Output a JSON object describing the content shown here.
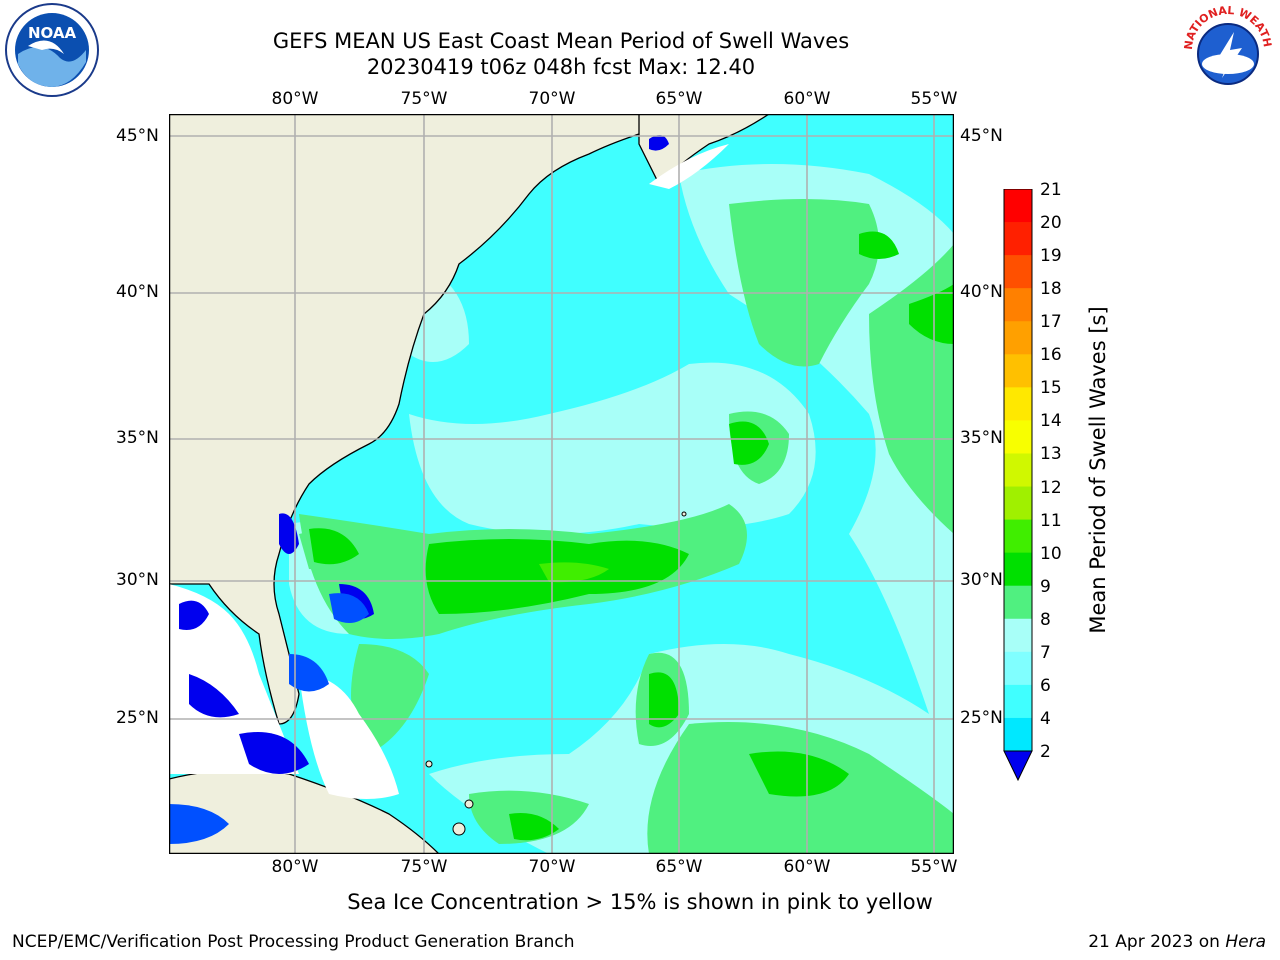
{
  "header": {
    "title_line1": "GEFS MEAN US East Coast Mean Period of Swell Waves",
    "title_line2": "20230419 t06z 048h fcst   Max: 12.40"
  },
  "logos": {
    "noaa_text": "NOAA",
    "nws_text": "NATIONAL WEATHER SERVICE"
  },
  "map": {
    "lon_labels": [
      "80°W",
      "75°W",
      "70°W",
      "65°W",
      "60°W",
      "55°W"
    ],
    "lat_labels": [
      "45°N",
      "40°N",
      "35°N",
      "30°N",
      "25°N"
    ],
    "colors": {
      "land": "#efefdd",
      "ice_white": "#ffffff",
      "grid": "#b0b0b0"
    }
  },
  "colorbar": {
    "label": "Mean Period of Swell Waves [s]",
    "ticks": [
      "2",
      "4",
      "6",
      "7",
      "8",
      "9",
      "10",
      "11",
      "12",
      "13",
      "14",
      "15",
      "16",
      "17",
      "18",
      "19",
      "20",
      "21"
    ],
    "colors": [
      "#0050ff",
      "#00e8ff",
      "#40ffff",
      "#80ffff",
      "#a8fff8",
      "#50f080",
      "#00e000",
      "#40ee00",
      "#a0f000",
      "#d0f800",
      "#f8ff00",
      "#ffe800",
      "#ffc000",
      "#ffa000",
      "#ff8000",
      "#ff5000",
      "#ff2000",
      "#ff0000"
    ],
    "under_color": "#0000ee"
  },
  "caption": "Sea Ice Concentration > 15% is shown in pink to yellow",
  "footer": {
    "left": "NCEP/EMC/Verification Post Processing Product Generation Branch",
    "right_date": "21 Apr 2023 on",
    "right_machine": "Hera"
  }
}
